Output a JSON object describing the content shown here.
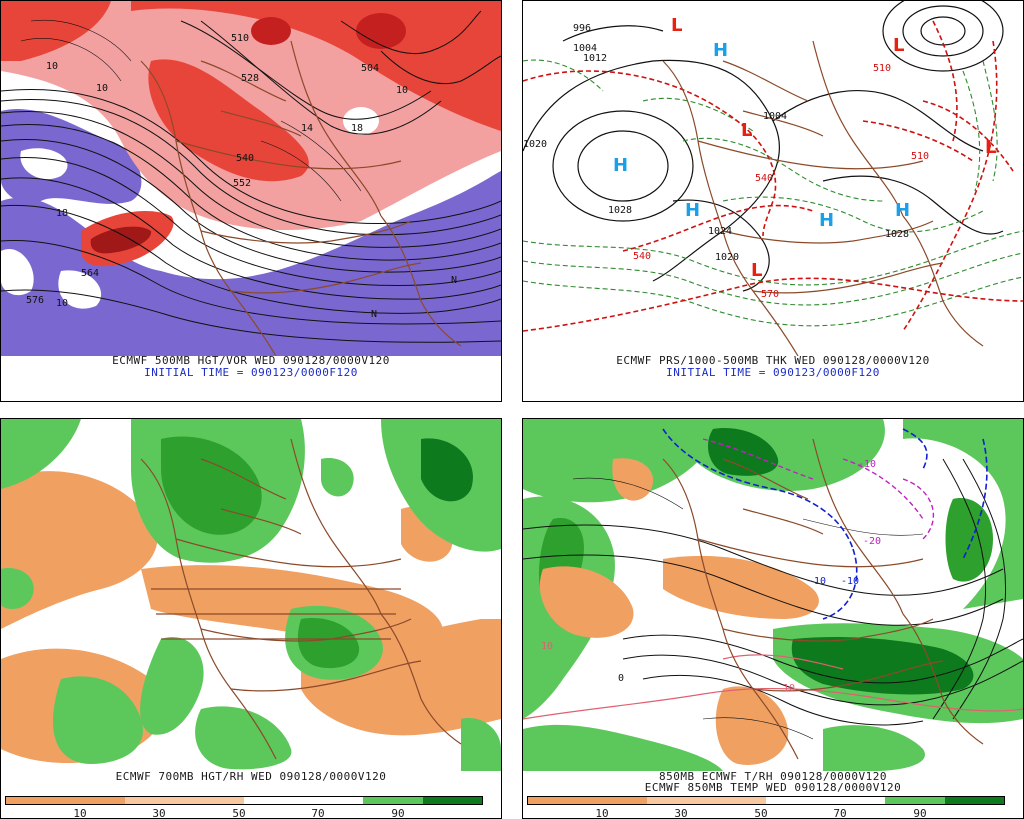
{
  "panels": {
    "p1": {
      "caption_line1": "ECMWF 500MB HGT/VOR WED 090128/0000V120",
      "caption_line2": "INITIAL TIME = 090123/0000F120",
      "contour_labels": [
        "510",
        "504",
        "528",
        "540",
        "552",
        "576",
        "564",
        "10",
        "10",
        "10",
        "18",
        "14",
        "18",
        "10"
      ],
      "n_labels": [
        "N",
        "N"
      ]
    },
    "p2": {
      "caption_line1": "ECMWF PRS/1000-500MB THK WED 090128/0000V120",
      "caption_line2": "INITIAL TIME = 090123/0000F120",
      "highs": [
        "H",
        "H",
        "H",
        "H",
        "H"
      ],
      "lows": [
        "L",
        "L",
        "L",
        "L",
        "L"
      ],
      "pressure_labels": [
        "1020",
        "1028",
        "1024",
        "1020",
        "1004",
        "1012",
        "996",
        "1004",
        "1028"
      ],
      "thickness_labels": [
        "540",
        "570",
        "510",
        "510",
        "540"
      ]
    },
    "p3": {
      "caption": "ECMWF 700MB HGT/RH WED 090128/0000V120",
      "colorbar_labels": [
        "10",
        "30",
        "50",
        "70",
        "90"
      ]
    },
    "p4": {
      "caption_line1": "850MB ECMWF T/RH 090128/0000V120",
      "caption_line2": "ECMWF 850MB TEMP WED 090128/0000V120",
      "temp_labels": [
        "-10",
        "-10",
        "-20",
        "-10",
        "10",
        "0",
        "10"
      ],
      "colorbar_labels": [
        "10",
        "30",
        "50",
        "70",
        "90"
      ]
    }
  },
  "colors": {
    "vort_red": "#e8453a",
    "vort_pink": "#f2a0a0",
    "vort_dark": "#a01818",
    "anticyc_purple": "#7a68d0",
    "rh_dry_orange": "#f0a060",
    "rh_green_light": "#5cc85c",
    "rh_green_mid": "#2ea02e",
    "rh_green_dark": "#0e7a1e",
    "coast_brown": "#8b4a2a",
    "high_blue": "#1aa0e8",
    "low_red": "#e82010",
    "thick_green": "#2e8b2e",
    "thick_red": "#d01010",
    "temp_blue": "#1020d0",
    "temp_magenta": "#c020c0",
    "temp_pink": "#e06070"
  }
}
